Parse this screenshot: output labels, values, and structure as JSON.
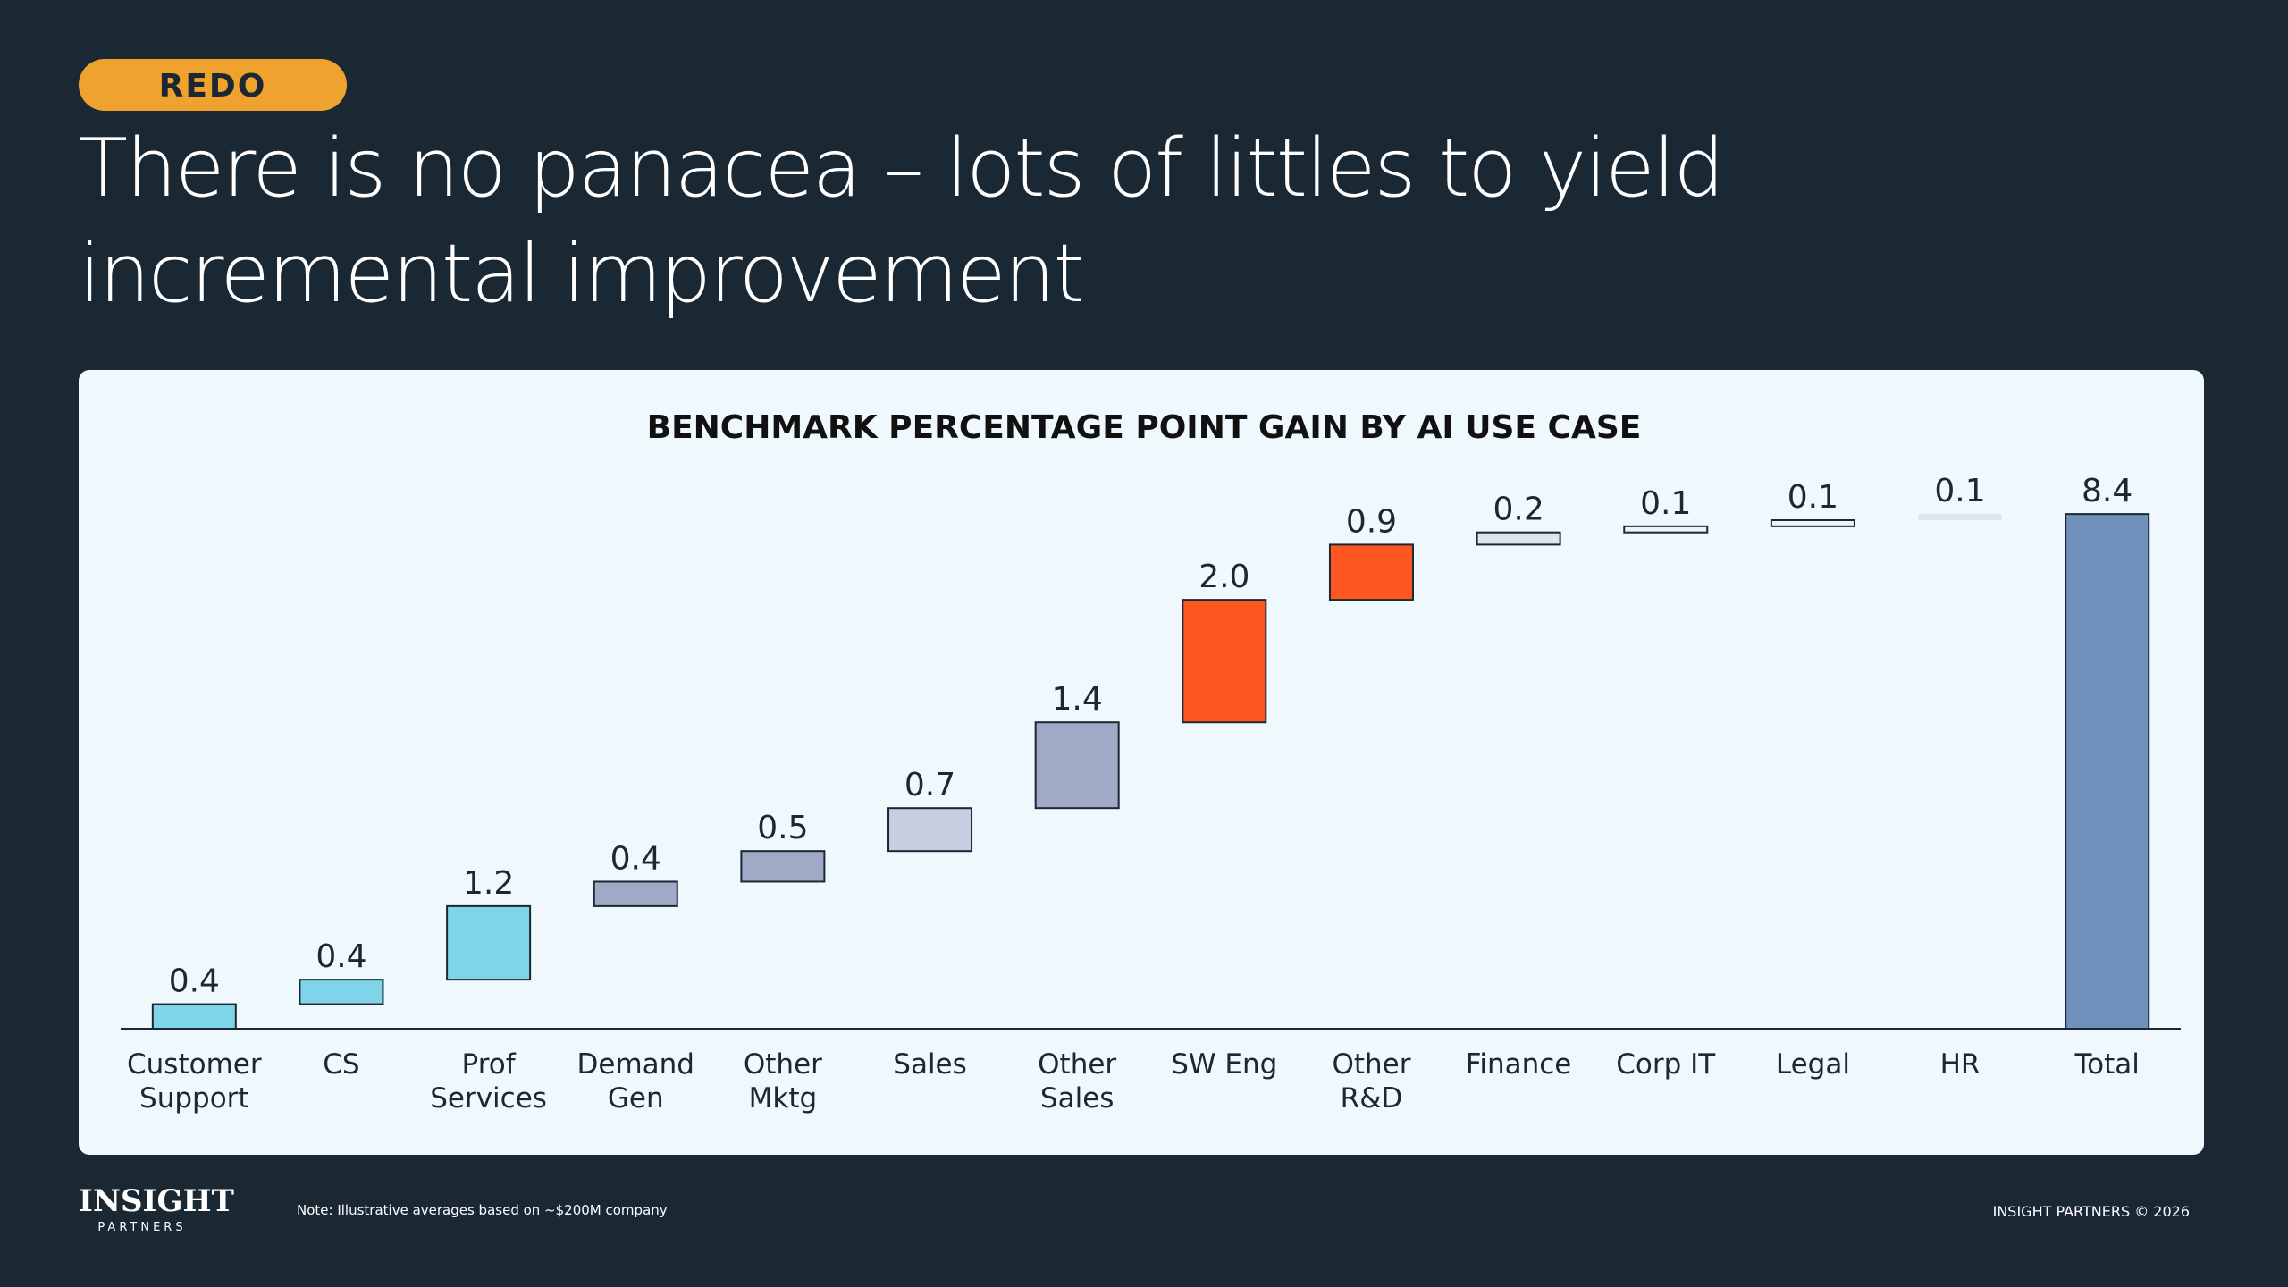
{
  "badge": "REDO",
  "headline": "There is no panacea –  lots of littles to yield incremental improvement",
  "logo": {
    "name": "INSIGHT",
    "sub": "PARTNERS"
  },
  "note": "Note: Illustrative averages based on ~$200M company",
  "copyright": "INSIGHT PARTNERS © 2026",
  "chart_data": {
    "type": "waterfall",
    "title": "BENCHMARK PERCENTAGE POINT GAIN BY AI USE CASE",
    "categories": [
      "Customer\nSupport",
      "CS",
      "Prof\nServices",
      "Demand\nGen",
      "Other\nMktg",
      "Sales",
      "Other\nSales",
      "SW Eng",
      "Other\nR&D",
      "Finance",
      "Corp IT",
      "Legal",
      "HR",
      "Total"
    ],
    "values": [
      0.4,
      0.4,
      1.2,
      0.4,
      0.5,
      0.7,
      1.4,
      2.0,
      0.9,
      0.2,
      0.1,
      0.1,
      0.1,
      8.4
    ],
    "value_labels": [
      "0.4",
      "0.4",
      "1.2",
      "0.4",
      "0.5",
      "0.7",
      "1.4",
      "2.0",
      "0.9",
      "0.2",
      "0.1",
      "0.1",
      "0.1",
      "8.4"
    ],
    "colors": [
      "#80d4e9",
      "#80d4e9",
      "#80d4e9",
      "#a0a9c6",
      "#a0a9c6",
      "#c6cee2",
      "#a0a9c6",
      "#ff5722",
      "#ff5722",
      "#dfe4ef",
      "#eef2f8",
      "#eef2f8",
      "#dfe5ee",
      "#7290bc"
    ],
    "last_is_total": true,
    "ylim": [
      0,
      9
    ]
  }
}
